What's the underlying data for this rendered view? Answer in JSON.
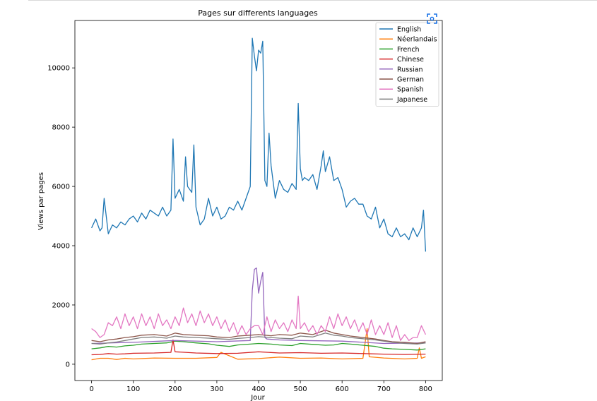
{
  "chart_data": {
    "type": "line",
    "title": "Pages sur differents languages",
    "xlabel": "Jour",
    "ylabel": "Views par pages",
    "xlim": [
      -40,
      840
    ],
    "ylim": [
      -550,
      11600
    ],
    "xticks": [
      0,
      100,
      200,
      300,
      400,
      500,
      600,
      700,
      800
    ],
    "yticks": [
      0,
      2000,
      4000,
      6000,
      8000,
      10000
    ],
    "grid": false,
    "legend": "top-right",
    "series": [
      {
        "name": "English",
        "color": "#1f77b4",
        "x": [
          0,
          10,
          20,
          25,
          30,
          40,
          50,
          60,
          70,
          80,
          90,
          100,
          110,
          120,
          130,
          140,
          150,
          160,
          170,
          180,
          190,
          195,
          200,
          210,
          220,
          225,
          230,
          240,
          245,
          250,
          260,
          270,
          280,
          290,
          300,
          310,
          320,
          330,
          340,
          350,
          360,
          370,
          380,
          385,
          390,
          395,
          400,
          405,
          410,
          415,
          420,
          425,
          430,
          440,
          450,
          460,
          470,
          480,
          490,
          495,
          500,
          505,
          510,
          520,
          530,
          540,
          550,
          555,
          560,
          570,
          580,
          590,
          600,
          610,
          620,
          630,
          640,
          650,
          660,
          670,
          680,
          690,
          700,
          710,
          720,
          730,
          740,
          750,
          760,
          770,
          780,
          790,
          795,
          800
        ],
        "y": [
          4600,
          4900,
          4500,
          4600,
          5600,
          4400,
          4700,
          4600,
          4800,
          4700,
          4900,
          5000,
          4800,
          5100,
          4900,
          5200,
          5100,
          5000,
          5300,
          5000,
          5200,
          7600,
          5600,
          5900,
          5500,
          7000,
          6000,
          5800,
          7400,
          5300,
          4700,
          4900,
          5600,
          5000,
          5300,
          4900,
          5000,
          5300,
          5200,
          5500,
          5200,
          5600,
          6000,
          11000,
          10400,
          9900,
          10600,
          10500,
          10900,
          6200,
          6000,
          7800,
          6700,
          5600,
          6200,
          5900,
          5800,
          6100,
          5900,
          8800,
          6600,
          6200,
          6300,
          6200,
          6400,
          5900,
          6700,
          7200,
          6500,
          7000,
          6200,
          6300,
          5900,
          5300,
          5500,
          5600,
          5400,
          5400,
          5000,
          4900,
          5300,
          4600,
          4900,
          4400,
          4300,
          4600,
          4300,
          4400,
          4200,
          4600,
          4300,
          4600,
          5200,
          3800
        ]
      },
      {
        "name": "Néerlandais",
        "color": "#ff7f0e",
        "x": [
          0,
          20,
          40,
          60,
          80,
          100,
          150,
          200,
          250,
          300,
          310,
          350,
          400,
          450,
          500,
          550,
          600,
          650,
          660,
          665,
          700,
          750,
          780,
          785,
          790,
          800
        ],
        "y": [
          150,
          200,
          200,
          160,
          200,
          180,
          210,
          200,
          200,
          230,
          400,
          170,
          190,
          240,
          200,
          210,
          180,
          200,
          1200,
          250,
          210,
          180,
          200,
          550,
          200,
          250
        ]
      },
      {
        "name": "French",
        "color": "#2ca02c",
        "x": [
          0,
          20,
          40,
          60,
          80,
          100,
          120,
          150,
          180,
          200,
          220,
          250,
          280,
          300,
          330,
          350,
          380,
          400,
          430,
          450,
          480,
          500,
          530,
          560,
          580,
          600,
          620,
          650,
          680,
          700,
          720,
          750,
          780,
          800
        ],
        "y": [
          520,
          550,
          600,
          580,
          620,
          640,
          680,
          700,
          720,
          780,
          760,
          720,
          690,
          640,
          600,
          650,
          680,
          700,
          680,
          650,
          630,
          700,
          670,
          640,
          650,
          700,
          680,
          640,
          600,
          540,
          520,
          500,
          480,
          520
        ]
      },
      {
        "name": "Chinese",
        "color": "#d62728",
        "x": [
          0,
          20,
          40,
          60,
          80,
          100,
          150,
          190,
          195,
          200,
          250,
          300,
          350,
          400,
          450,
          500,
          550,
          600,
          650,
          700,
          750,
          800
        ],
        "y": [
          320,
          330,
          360,
          340,
          350,
          370,
          380,
          400,
          820,
          420,
          380,
          360,
          370,
          420,
          380,
          390,
          370,
          380,
          360,
          340,
          330,
          340
        ]
      },
      {
        "name": "Russian",
        "color": "#9467bd",
        "x": [
          0,
          100,
          200,
          300,
          380,
          385,
          390,
          395,
          400,
          405,
          410,
          415,
          420,
          450,
          500,
          600,
          700,
          800
        ],
        "y": [
          700,
          740,
          800,
          760,
          800,
          2500,
          3200,
          3250,
          2400,
          2800,
          3100,
          900,
          850,
          820,
          800,
          780,
          700,
          720
        ]
      },
      {
        "name": "German",
        "color": "#8c564b",
        "x": [
          0,
          20,
          40,
          60,
          80,
          100,
          120,
          150,
          180,
          200,
          220,
          250,
          280,
          300,
          330,
          350,
          380,
          400,
          430,
          450,
          480,
          500,
          530,
          560,
          580,
          600,
          620,
          650,
          680,
          700,
          720,
          750,
          780,
          800
        ],
        "y": [
          800,
          760,
          820,
          850,
          900,
          930,
          980,
          1000,
          950,
          1050,
          1000,
          980,
          960,
          920,
          900,
          950,
          980,
          1000,
          960,
          1000,
          980,
          1050,
          1000,
          1150,
          1050,
          1000,
          950,
          900,
          850,
          800,
          760,
          740,
          700,
          760
        ]
      },
      {
        "name": "Spanish",
        "color": "#e377c2",
        "x": [
          0,
          10,
          20,
          30,
          40,
          50,
          60,
          70,
          80,
          90,
          100,
          110,
          120,
          130,
          140,
          150,
          160,
          170,
          180,
          190,
          200,
          210,
          220,
          230,
          240,
          250,
          260,
          270,
          280,
          290,
          300,
          310,
          320,
          330,
          340,
          350,
          360,
          370,
          380,
          390,
          400,
          410,
          420,
          430,
          440,
          450,
          460,
          470,
          480,
          490,
          495,
          500,
          510,
          520,
          530,
          540,
          550,
          560,
          570,
          580,
          590,
          600,
          610,
          620,
          630,
          640,
          650,
          660,
          670,
          680,
          690,
          700,
          710,
          720,
          730,
          740,
          750,
          760,
          770,
          780,
          790,
          800
        ],
        "y": [
          1200,
          1100,
          900,
          1000,
          1400,
          1300,
          1600,
          1200,
          1700,
          1300,
          1600,
          1200,
          1700,
          1300,
          1600,
          1200,
          1700,
          1300,
          1500,
          1200,
          1600,
          1300,
          1900,
          1400,
          1700,
          1300,
          1800,
          1400,
          1700,
          1300,
          1600,
          1200,
          1500,
          1100,
          1400,
          1000,
          1300,
          1000,
          1200,
          1300,
          1300,
          1000,
          1600,
          1100,
          1500,
          1200,
          1400,
          1100,
          1500,
          1200,
          2300,
          1200,
          1400,
          1100,
          1300,
          1000,
          1300,
          1100,
          1600,
          1200,
          1700,
          1300,
          1600,
          1200,
          1500,
          1100,
          1400,
          1000,
          1500,
          1000,
          1300,
          1000,
          1400,
          900,
          1300,
          800,
          1000,
          800,
          900,
          900,
          1300,
          1000
        ]
      },
      {
        "name": "Japanese",
        "color": "#7f7f7f",
        "x": [
          0,
          20,
          40,
          60,
          80,
          100,
          120,
          150,
          180,
          200,
          220,
          250,
          280,
          300,
          330,
          350,
          380,
          400,
          430,
          450,
          480,
          500,
          530,
          560,
          580,
          600,
          620,
          650,
          680,
          700,
          720,
          750,
          780,
          800
        ],
        "y": [
          700,
          680,
          720,
          750,
          800,
          850,
          900,
          920,
          880,
          950,
          920,
          900,
          880,
          860,
          840,
          870,
          900,
          930,
          900,
          880,
          860,
          950,
          920,
          1050,
          980,
          950,
          900,
          860,
          820,
          780,
          740,
          700,
          680,
          720
        ]
      }
    ]
  },
  "ui": {
    "control_icon": "scan-icon"
  }
}
